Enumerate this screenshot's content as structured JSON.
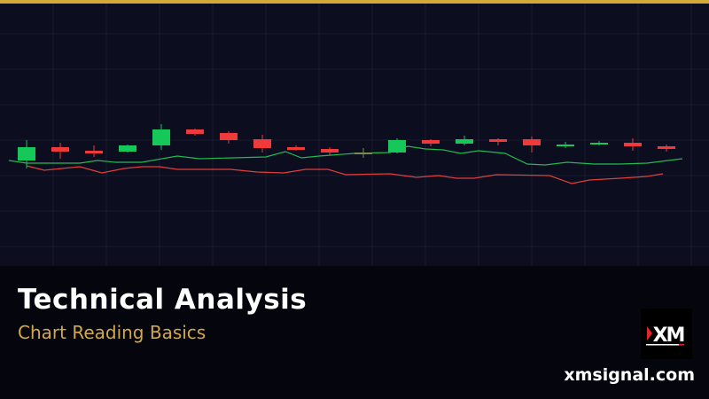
{
  "colors": {
    "accent": "#d4a93a",
    "bullish": "#16c75a",
    "bearish": "#f0393a",
    "doji": "#7d8a4c",
    "fast_ma": "#22b854",
    "slow_ma": "#e0403c"
  },
  "header": {
    "title": "Technical Analysis",
    "subtitle": "Chart Reading Basics"
  },
  "brand": {
    "logo_text": "XM",
    "site": "xmsignal.com"
  },
  "chart_data": {
    "type": "candlestick",
    "candles": [
      {
        "o": 119,
        "h": 142,
        "l": 110,
        "c": 134
      },
      {
        "o": 134,
        "h": 139,
        "l": 121,
        "c": 129
      },
      {
        "o": 130,
        "h": 136,
        "l": 123,
        "c": 127
      },
      {
        "o": 129,
        "h": 137,
        "l": 128,
        "c": 136
      },
      {
        "o": 136,
        "h": 160,
        "l": 131,
        "c": 154
      },
      {
        "o": 154,
        "h": 155,
        "l": 147,
        "c": 149
      },
      {
        "o": 150,
        "h": 152,
        "l": 138,
        "c": 142
      },
      {
        "o": 143,
        "h": 148,
        "l": 128,
        "c": 133
      },
      {
        "o": 134,
        "h": 136,
        "l": 130,
        "c": 131
      },
      {
        "o": 132,
        "h": 134,
        "l": 125,
        "c": 128
      },
      {
        "o": 128,
        "h": 133,
        "l": 122,
        "c": 128
      },
      {
        "o": 128,
        "h": 144,
        "l": 127,
        "c": 142
      },
      {
        "o": 142,
        "h": 143,
        "l": 135,
        "c": 138
      },
      {
        "o": 138,
        "h": 147,
        "l": 136,
        "c": 143
      },
      {
        "o": 143,
        "h": 144,
        "l": 136,
        "c": 140
      },
      {
        "o": 143,
        "h": 146,
        "l": 128,
        "c": 136
      },
      {
        "o": 135,
        "h": 140,
        "l": 133,
        "c": 137
      },
      {
        "o": 137,
        "h": 141,
        "l": 136,
        "c": 139
      },
      {
        "o": 139,
        "h": 144,
        "l": 130,
        "c": 135
      },
      {
        "o": 135,
        "h": 137,
        "l": 129,
        "c": 132
      }
    ],
    "fast_ma": [
      119,
      116,
      116,
      119,
      117,
      117,
      124,
      121,
      123,
      129,
      122,
      124,
      127,
      128,
      135,
      132,
      131,
      127,
      130,
      127,
      115,
      114,
      117,
      115,
      115,
      116,
      121
    ],
    "slow_ma": [
      113,
      108,
      110,
      112,
      105,
      110,
      112,
      112,
      109,
      109,
      106,
      105,
      109,
      109,
      103,
      104,
      100,
      102,
      99,
      99,
      103,
      102,
      93,
      97,
      99,
      101,
      104
    ]
  }
}
